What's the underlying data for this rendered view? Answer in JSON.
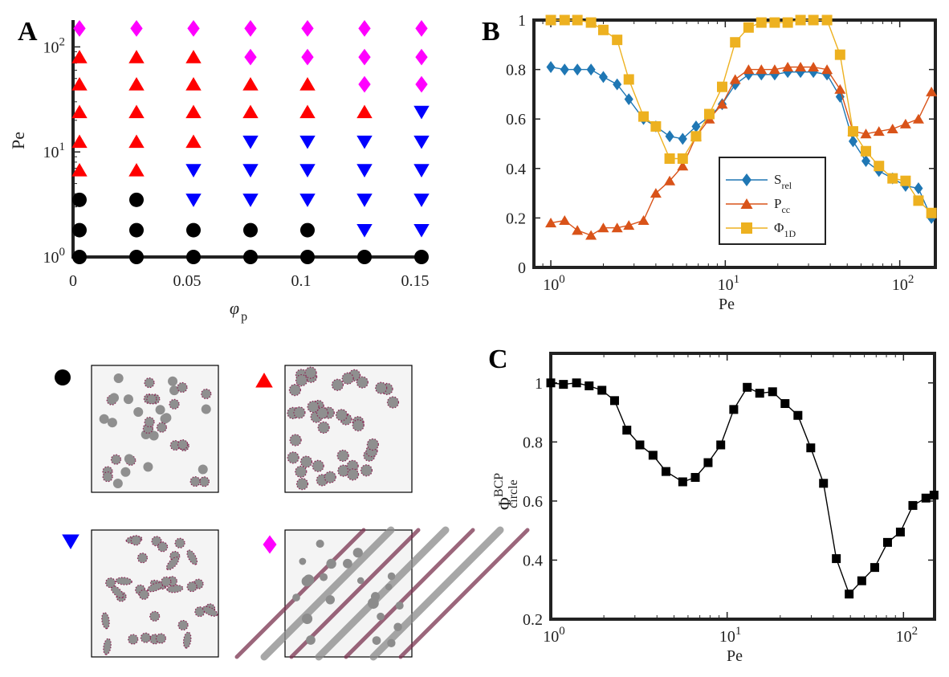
{
  "panels": {
    "a": {
      "letter": "A"
    },
    "b": {
      "letter": "B"
    },
    "c": {
      "letter": "C"
    }
  },
  "chart_data": [
    {
      "id": "A",
      "type": "scatter",
      "title": "",
      "xlabel": "φ",
      "xlabel_sub": "p",
      "ylabel": "Pe",
      "xscale": "linear",
      "yscale": "log",
      "xlim": [
        0,
        0.15
      ],
      "ylim": [
        1,
        180
      ],
      "xticks": [
        {
          "v": 0,
          "label": "0"
        },
        {
          "v": 0.05,
          "label": "0.05"
        },
        {
          "v": 0.1,
          "label": "0.1"
        },
        {
          "v": 0.15,
          "label": "0.15"
        }
      ],
      "yticks": [
        {
          "v": 1,
          "base": "10",
          "exp": "0"
        },
        {
          "v": 10,
          "base": "10",
          "exp": "1"
        },
        {
          "v": 100,
          "base": "10",
          "exp": "2"
        }
      ],
      "colors": {
        "circle": "#000000",
        "triangle": "#ff0000",
        "inverted-triangle": "#0000ff",
        "diamond": "#ff00ff"
      },
      "phi_values": [
        0.005,
        0.03,
        0.055,
        0.08,
        0.105,
        0.13,
        0.155
      ],
      "pe_values": [
        1,
        1.8,
        3.5,
        6.7,
        12.5,
        24,
        44,
        80,
        150
      ],
      "grid": [
        [
          "circle",
          "circle",
          "circle",
          "circle",
          "circle",
          "circle",
          "circle"
        ],
        [
          "circle",
          "circle",
          "circle",
          "circle",
          "circle",
          "inverted-triangle",
          "inverted-triangle"
        ],
        [
          "circle",
          "circle",
          "inverted-triangle",
          "inverted-triangle",
          "inverted-triangle",
          "inverted-triangle",
          "inverted-triangle"
        ],
        [
          "triangle",
          "triangle",
          "inverted-triangle",
          "inverted-triangle",
          "inverted-triangle",
          "inverted-triangle",
          "inverted-triangle"
        ],
        [
          "triangle",
          "triangle",
          "triangle",
          "inverted-triangle",
          "inverted-triangle",
          "inverted-triangle",
          "inverted-triangle"
        ],
        [
          "triangle",
          "triangle",
          "triangle",
          "triangle",
          "triangle",
          "triangle",
          "inverted-triangle"
        ],
        [
          "triangle",
          "triangle",
          "triangle",
          "triangle",
          "triangle",
          "diamond",
          "diamond"
        ],
        [
          "triangle",
          "triangle",
          "triangle",
          "diamond",
          "diamond",
          "diamond",
          "diamond"
        ],
        [
          "diamond",
          "diamond",
          "diamond",
          "diamond",
          "diamond",
          "diamond",
          "diamond"
        ]
      ]
    },
    {
      "id": "B",
      "type": "line",
      "title": "",
      "xlabel": "Pe",
      "ylabel": "",
      "xscale": "log",
      "xlim": [
        0.8,
        160
      ],
      "ylim": [
        0,
        1
      ],
      "xticks": [
        {
          "v": 1,
          "base": "10",
          "exp": "0"
        },
        {
          "v": 10,
          "base": "10",
          "exp": "1"
        },
        {
          "v": 100,
          "base": "10",
          "exp": "2"
        }
      ],
      "yticks": [
        {
          "v": 0,
          "label": "0"
        },
        {
          "v": 0.2,
          "label": "0.2"
        },
        {
          "v": 0.4,
          "label": "0.4"
        },
        {
          "v": 0.6,
          "label": "0.6"
        },
        {
          "v": 0.8,
          "label": "0.8"
        },
        {
          "v": 1,
          "label": "1"
        }
      ],
      "legend_position": "center-bottom",
      "series": [
        {
          "name": "S",
          "sub": "rel",
          "color": "#1f77b4",
          "marker": "diamond",
          "x": [
            1,
            1.2,
            1.42,
            1.7,
            2.0,
            2.4,
            2.8,
            3.4,
            4.0,
            4.8,
            5.7,
            6.8,
            8.1,
            9.6,
            11.4,
            13.6,
            16.1,
            19.2,
            22.8,
            27,
            32,
            38.3,
            45.5,
            54,
            64,
            76,
            91,
            108,
            128,
            152
          ],
          "y": [
            0.81,
            0.8,
            0.8,
            0.8,
            0.77,
            0.74,
            0.68,
            0.6,
            0.57,
            0.53,
            0.52,
            0.57,
            0.61,
            0.66,
            0.74,
            0.78,
            0.78,
            0.78,
            0.79,
            0.79,
            0.79,
            0.78,
            0.69,
            0.51,
            0.43,
            0.39,
            0.36,
            0.33,
            0.32,
            0.2
          ]
        },
        {
          "name": "P",
          "sub": "cc",
          "color": "#d95319",
          "marker": "triangle",
          "x": [
            1,
            1.2,
            1.42,
            1.7,
            2.0,
            2.4,
            2.8,
            3.4,
            4.0,
            4.8,
            5.7,
            6.8,
            8.1,
            9.6,
            11.4,
            13.6,
            16.1,
            19.2,
            22.8,
            27,
            32,
            38.3,
            45.5,
            54,
            64,
            76,
            91,
            108,
            128,
            152
          ],
          "y": [
            0.18,
            0.19,
            0.15,
            0.13,
            0.16,
            0.16,
            0.17,
            0.19,
            0.3,
            0.35,
            0.41,
            0.53,
            0.6,
            0.66,
            0.76,
            0.8,
            0.8,
            0.8,
            0.81,
            0.81,
            0.81,
            0.8,
            0.72,
            0.55,
            0.54,
            0.55,
            0.56,
            0.58,
            0.6,
            0.71
          ]
        },
        {
          "name": "Φ",
          "sub": "1D",
          "color": "#edb120",
          "marker": "square",
          "x": [
            1,
            1.2,
            1.42,
            1.7,
            2.0,
            2.4,
            2.8,
            3.4,
            4.0,
            4.8,
            5.7,
            6.8,
            8.1,
            9.6,
            11.4,
            13.6,
            16.1,
            19.2,
            22.8,
            27,
            32,
            38.3,
            45.5,
            54,
            64,
            76,
            91,
            108,
            128,
            152
          ],
          "y": [
            1.0,
            1.0,
            1.0,
            0.99,
            0.96,
            0.92,
            0.76,
            0.61,
            0.57,
            0.44,
            0.44,
            0.53,
            0.62,
            0.73,
            0.91,
            0.97,
            0.99,
            0.99,
            0.99,
            1.0,
            1.0,
            1.0,
            0.86,
            0.55,
            0.47,
            0.41,
            0.36,
            0.35,
            0.27,
            0.22
          ]
        }
      ]
    },
    {
      "id": "C",
      "type": "line",
      "title": "",
      "xlabel": "Pe",
      "ylabel": "Φ",
      "ylabel_sup": "BCP",
      "ylabel_sub": "circle",
      "xscale": "log",
      "xlim": [
        1,
        150
      ],
      "ylim": [
        0.2,
        1.1
      ],
      "xticks": [
        {
          "v": 1,
          "base": "10",
          "exp": "0"
        },
        {
          "v": 10,
          "base": "10",
          "exp": "1"
        },
        {
          "v": 100,
          "base": "10",
          "exp": "2"
        }
      ],
      "yticks": [
        {
          "v": 0.2,
          "label": "0.2"
        },
        {
          "v": 0.4,
          "label": "0.4"
        },
        {
          "v": 0.6,
          "label": "0.6"
        },
        {
          "v": 0.8,
          "label": "0.8"
        },
        {
          "v": 1,
          "label": "1"
        }
      ],
      "series": [
        {
          "name": "Φ_circle^BCP",
          "color": "#000000",
          "marker": "square",
          "x": [
            1,
            1.18,
            1.4,
            1.65,
            1.95,
            2.3,
            2.7,
            3.2,
            3.8,
            4.5,
            5.6,
            6.6,
            7.8,
            9.2,
            10.9,
            13.0,
            15.3,
            18.1,
            21.3,
            25.2,
            29.8,
            35.2,
            41.6,
            49.2,
            58,
            68.7,
            81.2,
            96,
            113,
            134,
            149
          ],
          "y": [
            1.0,
            0.995,
            1.0,
            0.99,
            0.975,
            0.94,
            0.84,
            0.79,
            0.755,
            0.7,
            0.665,
            0.68,
            0.73,
            0.79,
            0.91,
            0.985,
            0.965,
            0.97,
            0.93,
            0.89,
            0.78,
            0.66,
            0.405,
            0.285,
            0.33,
            0.375,
            0.46,
            0.495,
            0.585,
            0.61,
            0.62
          ]
        }
      ]
    }
  ],
  "snapshots": [
    {
      "marker": "circle",
      "color": "#000000",
      "kind": "dots-small"
    },
    {
      "marker": "triangle",
      "color": "#ff0000",
      "kind": "dots-large"
    },
    {
      "marker": "inverted-triangle",
      "color": "#0000ff",
      "kind": "dots-elongated"
    },
    {
      "marker": "diamond",
      "color": "#ff00ff",
      "kind": "bands"
    }
  ]
}
